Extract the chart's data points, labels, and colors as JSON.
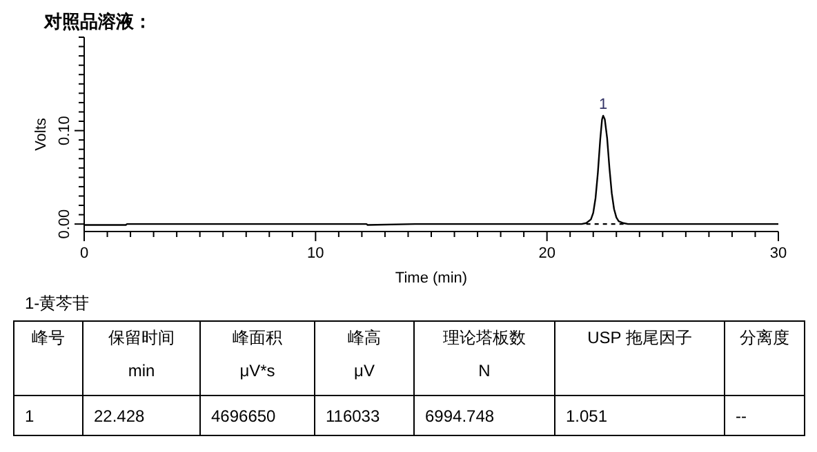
{
  "chart_data": {
    "type": "line",
    "title": "对照品溶液：",
    "xlabel": "Time (min)",
    "ylabel": "Volts",
    "xlim": [
      0,
      30
    ],
    "ylim": [
      -0.008,
      0.2
    ],
    "xticks": [
      0,
      {
        "value": 1,
        "label": null
      },
      {
        "value": 2,
        "label": null
      },
      {
        "value": 3,
        "label": null
      },
      {
        "value": 4,
        "label": null
      },
      {
        "value": 5,
        "label": null
      },
      {
        "value": 6,
        "label": null
      },
      {
        "value": 7,
        "label": null
      },
      {
        "value": 8,
        "label": null
      },
      {
        "value": 9,
        "label": null
      },
      10,
      {
        "value": 11,
        "label": null
      },
      {
        "value": 12,
        "label": null
      },
      {
        "value": 13,
        "label": null
      },
      {
        "value": 14,
        "label": null
      },
      {
        "value": 15,
        "label": null
      },
      {
        "value": 16,
        "label": null
      },
      {
        "value": 17,
        "label": null
      },
      {
        "value": 18,
        "label": null
      },
      {
        "value": 19,
        "label": null
      },
      20,
      {
        "value": 21,
        "label": null
      },
      {
        "value": 22,
        "label": null
      },
      {
        "value": 23,
        "label": null
      },
      {
        "value": 24,
        "label": null
      },
      {
        "value": 25,
        "label": null
      },
      {
        "value": 26,
        "label": null
      },
      {
        "value": 27,
        "label": null
      },
      {
        "value": 28,
        "label": null
      },
      {
        "value": 29,
        "label": null
      },
      30
    ],
    "yticks": [
      {
        "value": 0,
        "label": "0.00"
      },
      {
        "value": 0.01,
        "label": null
      },
      {
        "value": 0.02,
        "label": null
      },
      {
        "value": 0.03,
        "label": null
      },
      {
        "value": 0.04,
        "label": null
      },
      {
        "value": 0.05,
        "label": null
      },
      {
        "value": 0.06,
        "label": null
      },
      {
        "value": 0.07,
        "label": null
      },
      {
        "value": 0.08,
        "label": null
      },
      {
        "value": 0.09,
        "label": null
      },
      {
        "value": 0.1,
        "label": "0.10"
      },
      {
        "value": 0.11,
        "label": null
      },
      {
        "value": 0.12,
        "label": null
      },
      {
        "value": 0.13,
        "label": null
      },
      {
        "value": 0.14,
        "label": null
      },
      {
        "value": 0.15,
        "label": null
      },
      {
        "value": 0.16,
        "label": null
      },
      {
        "value": 0.17,
        "label": null
      },
      {
        "value": 0.18,
        "label": null
      },
      {
        "value": 0.19,
        "label": null
      },
      {
        "value": 0.2,
        "label": null
      }
    ],
    "grid": false,
    "series": [
      {
        "color": "#000000",
        "line_style": "solid",
        "x": [
          0,
          1.8,
          1.85,
          12.2,
          12.25,
          14.3,
          21.5,
          21.7,
          21.9,
          22.0,
          22.1,
          22.2,
          22.3,
          22.38,
          22.43,
          22.5,
          22.6,
          22.7,
          22.8,
          22.9,
          23.0,
          23.1,
          23.3,
          23.5,
          30
        ],
        "values": [
          -0.001,
          -0.001,
          0,
          0,
          -0.001,
          0,
          0,
          0.001,
          0.005,
          0.012,
          0.028,
          0.055,
          0.09,
          0.112,
          0.116,
          0.112,
          0.092,
          0.06,
          0.033,
          0.016,
          0.007,
          0.003,
          0.001,
          0,
          0
        ]
      },
      {
        "color": "#000000",
        "line_style": "dashed",
        "x": [
          21.7,
          23.4
        ],
        "values": [
          0,
          0
        ]
      }
    ],
    "annotations": [
      {
        "text": "1",
        "x": 22.43,
        "y": 0.116
      },
      "1-黄芩苷",
      "峰号",
      "保留时间\nmin",
      "峰面积\nμV*s",
      "峰高\nμV",
      "理论塔板数\nN",
      "USP 拖尾因子",
      "分离度",
      "1",
      "22.428",
      "4696650",
      "116033",
      "6994.748",
      "1.051",
      "--"
    ]
  }
}
